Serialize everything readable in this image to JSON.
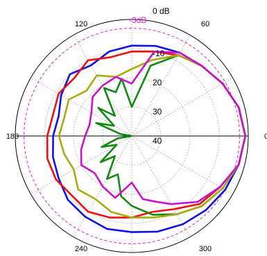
{
  "chart_data": {
    "type": "polar-line",
    "title": "",
    "radial_unit": "dB",
    "radial_range": [
      -40,
      0
    ],
    "radial_ticks": [
      {
        "value": 0,
        "label": "0 dB"
      },
      {
        "value": -10,
        "label": "-10"
      },
      {
        "value": -20,
        "label": "20"
      },
      {
        "value": -30,
        "label": "30"
      },
      {
        "value": -40,
        "label": "40"
      }
    ],
    "reference_line": {
      "value": -3,
      "label": "-3dB",
      "color": "#dd22dd"
    },
    "angle_labels": [
      {
        "angle": 0,
        "label": "0"
      },
      {
        "angle": 60,
        "label": "60"
      },
      {
        "angle": 120,
        "label": "120"
      },
      {
        "angle": 180,
        "label": "180"
      },
      {
        "angle": 240,
        "label": "240"
      },
      {
        "angle": 300,
        "label": "300"
      }
    ],
    "grid": true,
    "series": [
      {
        "color": "#1010ee",
        "points": [
          [
            0,
            -1
          ],
          [
            15,
            -2
          ],
          [
            30,
            -4
          ],
          [
            45,
            -6
          ],
          [
            60,
            -7
          ],
          [
            75,
            -8
          ],
          [
            90,
            -9
          ],
          [
            105,
            -10
          ],
          [
            120,
            -12
          ],
          [
            135,
            -10
          ],
          [
            150,
            -12
          ],
          [
            165,
            -14
          ],
          [
            180,
            -13
          ],
          [
            195,
            -12
          ],
          [
            210,
            -11
          ],
          [
            225,
            -9
          ],
          [
            240,
            -8
          ],
          [
            255,
            -7
          ],
          [
            270,
            -7
          ],
          [
            285,
            -6
          ],
          [
            300,
            -5
          ],
          [
            315,
            -4
          ],
          [
            330,
            -3
          ],
          [
            345,
            -2
          ],
          [
            360,
            -1
          ]
        ]
      },
      {
        "color": "#ee1010",
        "points": [
          [
            0,
            -1
          ],
          [
            15,
            -2
          ],
          [
            30,
            -4
          ],
          [
            45,
            -6
          ],
          [
            60,
            -8
          ],
          [
            75,
            -10
          ],
          [
            90,
            -11
          ],
          [
            105,
            -12
          ],
          [
            120,
            -10
          ],
          [
            135,
            -12
          ],
          [
            150,
            -11
          ],
          [
            165,
            -12
          ],
          [
            180,
            -11
          ],
          [
            195,
            -10
          ],
          [
            210,
            -10
          ],
          [
            225,
            -11
          ],
          [
            240,
            -10
          ],
          [
            255,
            -11
          ],
          [
            270,
            -12
          ],
          [
            285,
            -13
          ],
          [
            300,
            -11
          ],
          [
            315,
            -7
          ],
          [
            330,
            -5
          ],
          [
            345,
            -2
          ],
          [
            360,
            -1
          ]
        ]
      },
      {
        "color": "#108a10",
        "points": [
          [
            0,
            -1
          ],
          [
            15,
            -2
          ],
          [
            30,
            -4
          ],
          [
            45,
            -6
          ],
          [
            60,
            -8
          ],
          [
            75,
            -15
          ],
          [
            90,
            -30
          ],
          [
            100,
            -20
          ],
          [
            110,
            -24
          ],
          [
            120,
            -21
          ],
          [
            130,
            -31
          ],
          [
            140,
            -25
          ],
          [
            150,
            -33
          ],
          [
            160,
            -27
          ],
          [
            170,
            -36
          ],
          [
            180,
            -40
          ],
          [
            190,
            -35
          ],
          [
            200,
            -29
          ],
          [
            210,
            -34
          ],
          [
            220,
            -26
          ],
          [
            230,
            -31
          ],
          [
            240,
            -23
          ],
          [
            250,
            -26
          ],
          [
            260,
            -19
          ],
          [
            270,
            -16
          ],
          [
            285,
            -12
          ],
          [
            300,
            -9
          ],
          [
            315,
            -6
          ],
          [
            330,
            -4
          ],
          [
            345,
            -2
          ],
          [
            360,
            -1
          ]
        ]
      },
      {
        "color": "#aaaa10",
        "points": [
          [
            0,
            -1
          ],
          [
            15,
            -2
          ],
          [
            30,
            -4
          ],
          [
            45,
            -6
          ],
          [
            60,
            -8
          ],
          [
            75,
            -13
          ],
          [
            90,
            -17
          ],
          [
            105,
            -19
          ],
          [
            120,
            -16
          ],
          [
            135,
            -18
          ],
          [
            150,
            -15
          ],
          [
            165,
            -16
          ],
          [
            180,
            -15
          ],
          [
            195,
            -16
          ],
          [
            210,
            -17
          ],
          [
            225,
            -14
          ],
          [
            240,
            -15
          ],
          [
            255,
            -13
          ],
          [
            270,
            -12
          ],
          [
            285,
            -11
          ],
          [
            300,
            -9
          ],
          [
            315,
            -6
          ],
          [
            330,
            -4
          ],
          [
            345,
            -2
          ],
          [
            360,
            -1
          ]
        ]
      },
      {
        "color": "#cc10cc",
        "points": [
          [
            0,
            -1
          ],
          [
            15,
            -2
          ],
          [
            30,
            -4
          ],
          [
            45,
            -6
          ],
          [
            60,
            -7
          ],
          [
            75,
            -10
          ],
          [
            90,
            -22
          ],
          [
            105,
            -19
          ],
          [
            120,
            -20
          ],
          [
            135,
            -21
          ],
          [
            150,
            -24
          ],
          [
            165,
            -25
          ],
          [
            180,
            -24
          ],
          [
            195,
            -22
          ],
          [
            210,
            -20
          ],
          [
            225,
            -22
          ],
          [
            240,
            -20
          ],
          [
            255,
            -18
          ],
          [
            270,
            -24
          ],
          [
            280,
            -18
          ],
          [
            290,
            -16
          ],
          [
            300,
            -13
          ],
          [
            315,
            -8
          ],
          [
            330,
            -5
          ],
          [
            345,
            -2
          ],
          [
            360,
            -1
          ]
        ]
      }
    ]
  }
}
